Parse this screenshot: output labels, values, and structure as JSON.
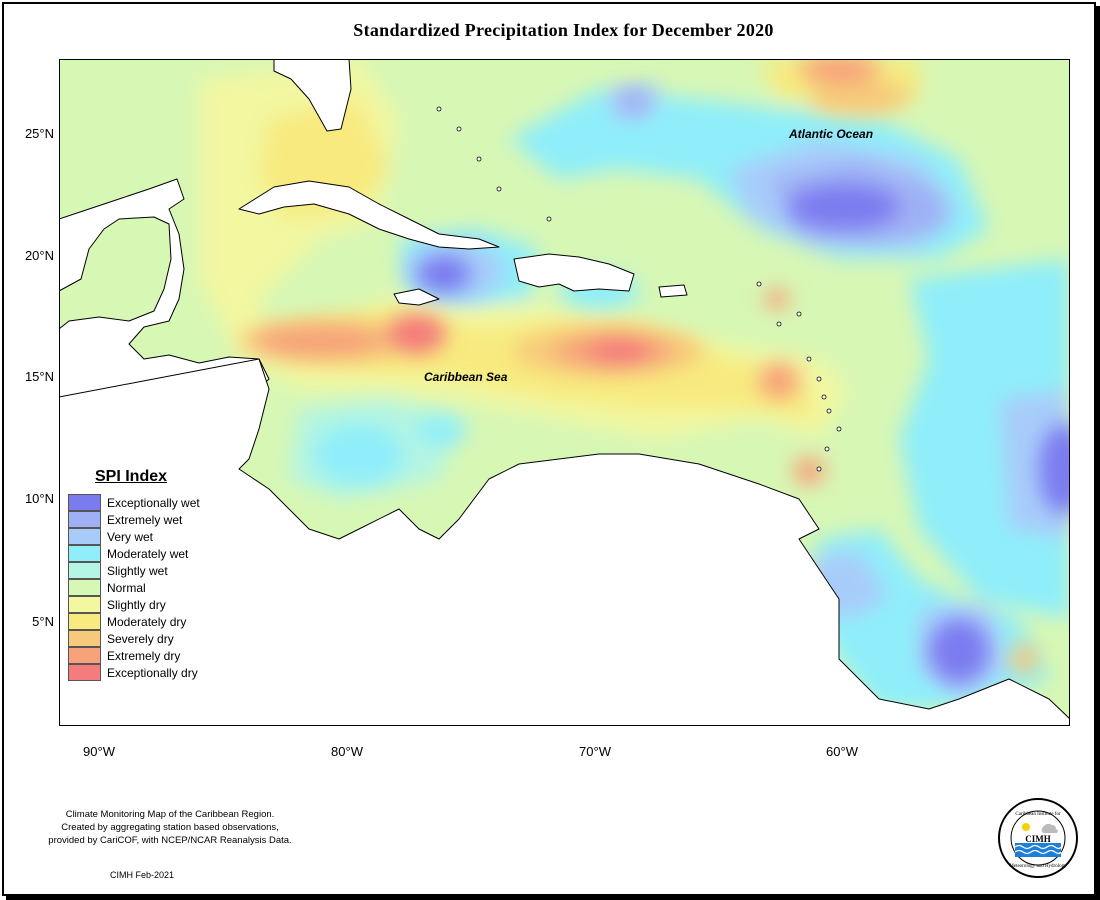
{
  "title": "Standardized Precipitation Index for December 2020",
  "lat_labels": [
    "25°N",
    "20°N",
    "15°N",
    "10°N",
    "5°N"
  ],
  "lon_labels": [
    "90°W",
    "80°W",
    "70°W",
    "60°W"
  ],
  "labels": {
    "atlantic": "Atlantic Ocean",
    "caribbean": "Caribbean Sea"
  },
  "legend": {
    "title": "SPI Index",
    "items": [
      {
        "label": "Exceptionally wet",
        "color": "#7b7bf0"
      },
      {
        "label": "Extremely wet",
        "color": "#9fb0f5"
      },
      {
        "label": "Very wet",
        "color": "#a8ccfa"
      },
      {
        "label": "Moderately wet",
        "color": "#8feefa"
      },
      {
        "label": "Slightly wet",
        "color": "#b4f5e3"
      },
      {
        "label": "Normal",
        "color": "#d7f7b5"
      },
      {
        "label": "Slightly dry",
        "color": "#f2f7a0"
      },
      {
        "label": "Moderately dry",
        "color": "#f8ea7e"
      },
      {
        "label": "Severely dry",
        "color": "#f7c97a"
      },
      {
        "label": "Extremely dry",
        "color": "#f7a27a"
      },
      {
        "label": "Exceptionally dry",
        "color": "#f47c7c"
      }
    ]
  },
  "footer": {
    "line1": "Climate Monitoring Map of the Caribbean Region.",
    "line2": "Created by aggregating station based observations,",
    "line3": "provided by CariCOF, with NCEP/NCAR Reanalysis Data.",
    "stamp": "CIMH Feb-2021"
  },
  "logo": {
    "abbr": "CIMH",
    "ring_top": "Caribbean Institute for",
    "ring_bottom": "Meteorology and Hydrology"
  }
}
